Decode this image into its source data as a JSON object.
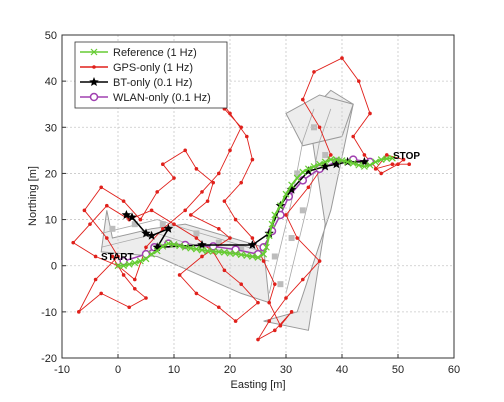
{
  "chart_data": {
    "type": "line",
    "title": "",
    "xlabel": "Easting [m]",
    "ylabel": "Northing [m]",
    "xlim": [
      -10,
      60
    ],
    "ylim": [
      -20,
      50
    ],
    "xticks": [
      -10,
      0,
      10,
      20,
      30,
      40,
      50,
      60
    ],
    "yticks": [
      -20,
      -10,
      0,
      10,
      20,
      30,
      40,
      50
    ],
    "grid": true,
    "legend_position": "top-left",
    "annotations": [
      {
        "text": "START",
        "x": -3.5,
        "y": 1.2
      },
      {
        "text": "STOP",
        "x": 48.5,
        "y": 22.5
      }
    ],
    "series": [
      {
        "name": "Reference (1 Hz)",
        "color": "#66cc33",
        "marker": "x",
        "x": [
          0,
          1,
          2,
          3,
          4,
          5,
          6,
          7,
          8,
          9,
          10,
          11,
          12,
          13,
          14,
          15,
          16,
          17,
          18,
          19,
          20,
          21,
          22,
          23,
          24,
          25,
          26,
          26.5,
          27,
          27.5,
          28,
          29,
          30,
          31,
          32,
          33,
          34,
          35,
          36,
          37,
          38,
          39,
          40,
          41,
          42,
          43,
          44,
          45,
          46,
          47,
          48,
          49
        ],
        "y": [
          0,
          0,
          0.3,
          0.6,
          1,
          1.5,
          2.5,
          3.2,
          4.2,
          4.8,
          4.6,
          4.3,
          4,
          3.8,
          3.6,
          3.4,
          3.2,
          3.1,
          3,
          2.9,
          2.7,
          2.6,
          2.4,
          2.2,
          2,
          1.8,
          2.5,
          4,
          6.5,
          9,
          11,
          13,
          15.5,
          17.5,
          19,
          20.3,
          21,
          21.5,
          22,
          22.5,
          23,
          23,
          22.8,
          22.5,
          22.2,
          21.8,
          21.5,
          21.8,
          22.5,
          23,
          23.2,
          23.3
        ]
      },
      {
        "name": "GPS-only (1 Hz)",
        "color": "#e0201b",
        "marker": "dot",
        "x": [
          -1,
          1,
          3,
          5,
          2,
          -3,
          -7,
          -4,
          0,
          -2,
          -6,
          -3,
          1,
          4,
          7,
          10,
          8,
          12,
          14,
          17,
          16,
          13,
          18,
          20,
          15,
          11,
          14,
          18,
          21,
          25,
          22,
          19,
          17,
          14,
          10,
          6,
          2,
          -2,
          -5,
          -8,
          -4,
          0,
          3,
          5,
          8,
          12,
          15,
          18,
          20,
          22,
          19,
          17,
          20,
          23,
          24,
          22,
          19,
          21,
          24,
          26,
          28,
          27,
          29,
          31,
          28,
          25,
          27,
          30,
          33,
          36,
          32,
          30,
          34,
          38,
          36,
          33,
          35,
          40,
          43,
          45,
          42,
          44,
          47,
          50,
          51,
          48,
          46,
          49,
          52
        ],
        "y": [
          2,
          -2,
          -5,
          -7,
          -9,
          -6,
          -10,
          -3,
          2,
          6,
          12,
          17,
          14,
          10,
          16,
          19,
          22,
          25,
          21,
          18,
          14,
          11,
          8,
          6,
          2,
          -2,
          -6,
          -9,
          -12,
          -8,
          -4,
          -1,
          3,
          6,
          9,
          12,
          10,
          13,
          9,
          5,
          2,
          0,
          -3,
          4,
          8,
          12,
          16,
          20,
          25,
          30,
          34,
          38,
          33,
          28,
          23,
          18,
          14,
          10,
          6,
          1,
          -4,
          -8,
          -13,
          -10,
          -14,
          -16,
          -12,
          -7,
          -3,
          1,
          6,
          11,
          17,
          24,
          30,
          36,
          42,
          45,
          40,
          33,
          28,
          24,
          20,
          22,
          23,
          24,
          21,
          22,
          22
        ]
      },
      {
        "name": "BT-only (0.1 Hz)",
        "color": "#000000",
        "marker": "star",
        "x": [
          1.5,
          2.5,
          5,
          6,
          9,
          7,
          15,
          24,
          27,
          29,
          31,
          34,
          37,
          39,
          41,
          44
        ],
        "y": [
          11,
          10.5,
          7,
          6.5,
          8,
          4,
          4.5,
          4.5,
          7,
          13,
          16.5,
          20.5,
          21.5,
          22,
          22.5,
          22.5
        ]
      },
      {
        "name": "WLAN-only (0.1 Hz)",
        "color": "#a040b0",
        "marker": "circle",
        "x": [
          1,
          5,
          6.5,
          9,
          12,
          17,
          21,
          25,
          26,
          27.5,
          29,
          30.5,
          33,
          36,
          39,
          42,
          45
        ],
        "y": [
          1,
          2.5,
          4,
          4.8,
          4.5,
          4.2,
          3.5,
          2.5,
          4,
          7.5,
          11,
          15,
          18.5,
          21,
          22.5,
          23,
          22.5
        ]
      }
    ]
  }
}
